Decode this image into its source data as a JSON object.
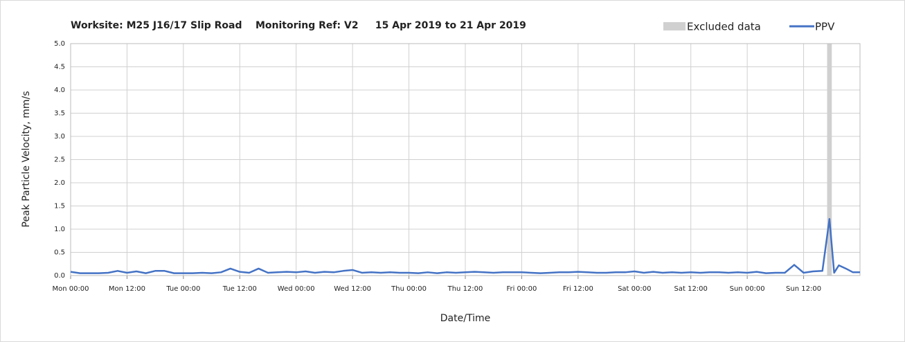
{
  "chart_data": {
    "type": "line",
    "title": "Worksite: M25 J16/17 Slip Road    Monitoring Ref: V2     15 Apr 2019 to 21 Apr 2019",
    "x_label": "Date/Time",
    "y_label": "Peak Particle Velocity, mm/s",
    "xlim": [
      0,
      168
    ],
    "xticks": [
      {
        "value": 0,
        "label": "Mon 00:00"
      },
      {
        "value": 12,
        "label": "Mon 12:00"
      },
      {
        "value": 24,
        "label": "Tue 00:00"
      },
      {
        "value": 36,
        "label": "Tue 12:00"
      },
      {
        "value": 48,
        "label": "Wed 00:00"
      },
      {
        "value": 60,
        "label": "Wed 12:00"
      },
      {
        "value": 72,
        "label": "Thu 00:00"
      },
      {
        "value": 84,
        "label": "Thu 12:00"
      },
      {
        "value": 96,
        "label": "Fri 00:00"
      },
      {
        "value": 108,
        "label": "Fri 12:00"
      },
      {
        "value": 120,
        "label": "Sat 00:00"
      },
      {
        "value": 132,
        "label": "Sat 12:00"
      },
      {
        "value": 144,
        "label": "Sun 00:00"
      },
      {
        "value": 156,
        "label": "Sun 12:00"
      }
    ],
    "ylim": [
      0,
      5
    ],
    "yticks": [
      {
        "value": 0,
        "label": "0.0"
      },
      0.5,
      {
        "value": 1,
        "label": "1.0"
      },
      1.5,
      {
        "value": 2,
        "label": "2.0"
      },
      2.5,
      {
        "value": 3,
        "label": "3.0"
      },
      3.5,
      {
        "value": 4,
        "label": "4.0"
      },
      4.5,
      {
        "value": 5,
        "label": "5.0"
      }
    ],
    "grid": true,
    "legend": "top-right",
    "excluded": {
      "name": "Excluded data",
      "color": "#d0d0d0",
      "x": [
        161,
        162
      ]
    },
    "x": [
      0,
      2,
      4,
      6,
      8,
      10,
      12,
      14,
      16,
      18,
      20,
      22,
      24,
      26,
      28,
      30,
      32,
      34,
      36,
      38,
      40,
      42,
      44,
      46,
      48,
      50,
      52,
      54,
      56,
      58,
      60,
      62,
      64,
      66,
      68,
      70,
      72,
      74,
      76,
      78,
      80,
      82,
      84,
      86,
      88,
      90,
      92,
      94,
      96,
      98,
      100,
      102,
      104,
      106,
      108,
      110,
      112,
      114,
      116,
      118,
      120,
      122,
      124,
      126,
      128,
      130,
      132,
      134,
      136,
      138,
      140,
      142,
      144,
      146,
      148,
      150,
      152,
      154,
      156,
      158,
      160,
      161.5,
      162.5,
      163.5,
      165,
      166.5,
      168
    ],
    "series": [
      {
        "name": "PPV",
        "color": "#4472c4",
        "values": [
          0.08,
          0.05,
          0.05,
          0.05,
          0.06,
          0.1,
          0.06,
          0.09,
          0.05,
          0.1,
          0.1,
          0.05,
          0.05,
          0.05,
          0.06,
          0.05,
          0.07,
          0.15,
          0.08,
          0.06,
          0.15,
          0.06,
          0.07,
          0.08,
          0.07,
          0.09,
          0.06,
          0.08,
          0.07,
          0.1,
          0.12,
          0.06,
          0.07,
          0.06,
          0.07,
          0.06,
          0.06,
          0.05,
          0.07,
          0.05,
          0.07,
          0.06,
          0.07,
          0.08,
          0.07,
          0.06,
          0.07,
          0.07,
          0.07,
          0.06,
          0.05,
          0.06,
          0.07,
          0.07,
          0.08,
          0.07,
          0.06,
          0.06,
          0.07,
          0.07,
          0.09,
          0.06,
          0.08,
          0.06,
          0.07,
          0.06,
          0.07,
          0.06,
          0.07,
          0.07,
          0.06,
          0.07,
          0.06,
          0.08,
          0.05,
          0.06,
          0.06,
          0.23,
          0.06,
          0.09,
          0.1,
          1.22,
          0.06,
          0.22,
          0.15,
          0.07,
          0.07
        ]
      }
    ]
  }
}
